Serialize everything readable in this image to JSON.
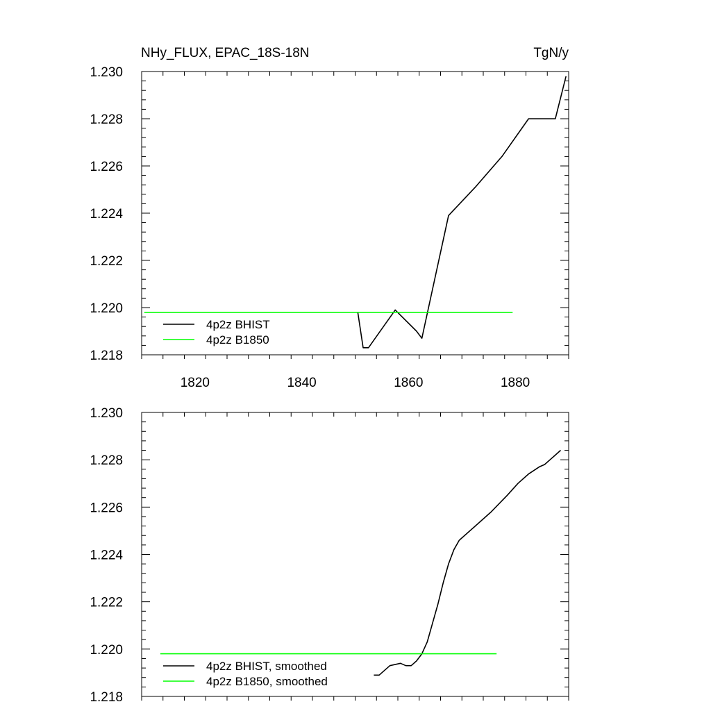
{
  "header": {
    "title_left": "NHy_FLUX, EPAC_18S-18N",
    "title_right": "TgN/y"
  },
  "colors": {
    "bhist": "#000000",
    "b1850": "#00ff00",
    "axis": "#000000",
    "background": "#ffffff"
  },
  "chart_data": [
    {
      "type": "line",
      "title": "NHy_FLUX, EPAC_18S-18N",
      "unit_label": "TgN/y",
      "xlim": [
        1810,
        1890
      ],
      "ylim": [
        1.218,
        1.23
      ],
      "x_ticks": [
        1820,
        1840,
        1860,
        1880
      ],
      "x_tick_labels": [
        "1820",
        "1840",
        "1860",
        "1880"
      ],
      "y_ticks": [
        1.218,
        1.22,
        1.222,
        1.224,
        1.226,
        1.228,
        1.23
      ],
      "y_tick_labels": [
        "1.218",
        "1.220",
        "1.222",
        "1.224",
        "1.226",
        "1.228",
        "1.230"
      ],
      "legend_position": "bottom-left",
      "series": [
        {
          "name": "4p2z BHIST",
          "color": "#000000",
          "points": [
            [
              1850.5,
              1.2198
            ],
            [
              1851.5,
              1.2183
            ],
            [
              1852.5,
              1.2183
            ],
            [
              1857.5,
              1.2199
            ],
            [
              1861.5,
              1.219
            ],
            [
              1862.5,
              1.2187
            ],
            [
              1867.5,
              1.2239
            ],
            [
              1872.5,
              1.2251
            ],
            [
              1877.5,
              1.2264
            ],
            [
              1882.5,
              1.228
            ],
            [
              1886.5,
              1.228
            ],
            [
              1887.5,
              1.228
            ],
            [
              1889.5,
              1.2298
            ]
          ]
        },
        {
          "name": "4p2z B1850",
          "color": "#00ff00",
          "points": [
            [
              1810.5,
              1.2198
            ],
            [
              1811.5,
              1.2198
            ],
            [
              1812.5,
              1.2198
            ],
            [
              1820,
              1.2198
            ],
            [
              1840,
              1.2198
            ],
            [
              1860,
              1.2198
            ],
            [
              1879.5,
              1.2198
            ]
          ]
        }
      ]
    },
    {
      "type": "line",
      "xlim": [
        1810,
        1890
      ],
      "ylim": [
        1.218,
        1.23
      ],
      "x_ticks": [
        1820,
        1840,
        1860,
        1880
      ],
      "y_ticks": [
        1.218,
        1.22,
        1.222,
        1.224,
        1.226,
        1.228,
        1.23
      ],
      "y_tick_labels": [
        "1.218",
        "1.220",
        "1.222",
        "1.224",
        "1.226",
        "1.228",
        "1.230"
      ],
      "legend_position": "bottom-left",
      "series": [
        {
          "name": "4p2z BHIST, smoothed",
          "color": "#000000",
          "points": [
            [
              1853.5,
              1.2189
            ],
            [
              1854.5,
              1.2189
            ],
            [
              1856.5,
              1.2193
            ],
            [
              1858.5,
              1.2194
            ],
            [
              1859.5,
              1.2193
            ],
            [
              1860.5,
              1.2193
            ],
            [
              1861.5,
              1.2195
            ],
            [
              1862.5,
              1.2198
            ],
            [
              1863.5,
              1.2203
            ],
            [
              1864.5,
              1.2211
            ],
            [
              1865.5,
              1.2219
            ],
            [
              1866.5,
              1.2228
            ],
            [
              1867.5,
              1.2236
            ],
            [
              1868.5,
              1.2242
            ],
            [
              1869.5,
              1.2246
            ],
            [
              1872.5,
              1.2252
            ],
            [
              1875.5,
              1.2258
            ],
            [
              1878.5,
              1.2265
            ],
            [
              1880.5,
              1.227
            ],
            [
              1882.5,
              1.2274
            ],
            [
              1884.5,
              1.2277
            ],
            [
              1885.5,
              1.2278
            ],
            [
              1886.5,
              1.228
            ],
            [
              1887.5,
              1.2282
            ],
            [
              1888.5,
              1.2284
            ]
          ]
        },
        {
          "name": "4p2z B1850, smoothed",
          "color": "#00ff00",
          "points": [
            [
              1813.5,
              1.2198
            ],
            [
              1830,
              1.2198
            ],
            [
              1850,
              1.2198
            ],
            [
              1870,
              1.2198
            ],
            [
              1876.5,
              1.2198
            ]
          ]
        }
      ]
    }
  ]
}
